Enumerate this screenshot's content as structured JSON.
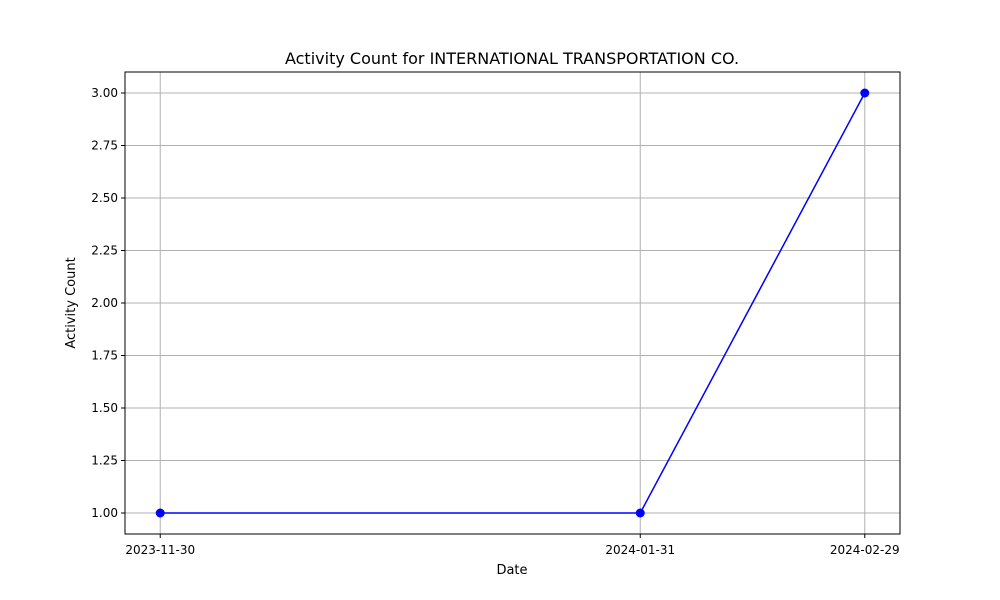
{
  "chart_data": {
    "type": "line",
    "title": "Activity Count for INTERNATIONAL TRANSPORTATION CO.",
    "xlabel": "Date",
    "ylabel": "Activity Count",
    "x": [
      "2023-11-30",
      "2024-01-31",
      "2024-02-29"
    ],
    "series": [
      {
        "values": [
          1,
          1,
          3
        ],
        "color": "#0000ff",
        "marker": "circle"
      }
    ],
    "yticks": [
      "1.00",
      "1.25",
      "1.50",
      "1.75",
      "2.00",
      "2.25",
      "2.50",
      "2.75",
      "3.00"
    ],
    "ylim": [
      0.9,
      3.1
    ],
    "grid": true,
    "legend": "none"
  }
}
